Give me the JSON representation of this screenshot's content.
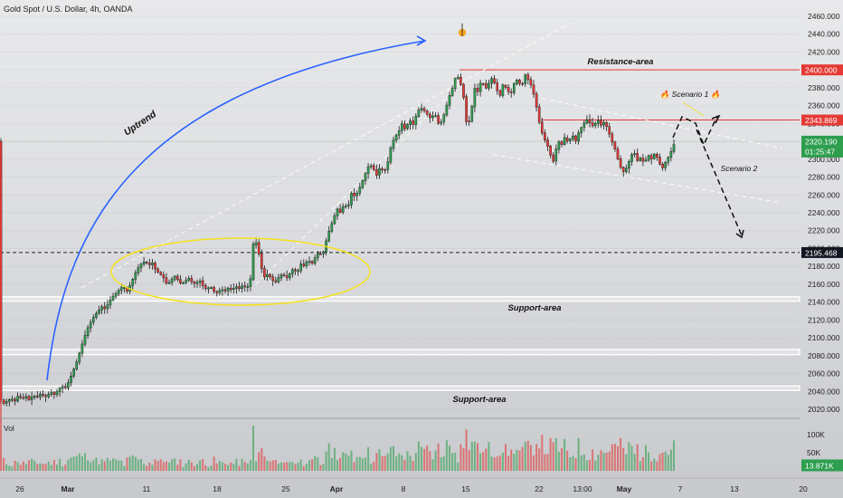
{
  "header": {
    "title": "Gold Spot / U.S. Dollar, 4h, OANDA"
  },
  "chart_data": {
    "type": "candlestick",
    "symbol": "Gold Spot / U.S. Dollar",
    "interval": "4h",
    "source": "OANDA",
    "ylim": [
      2010,
      2470
    ],
    "y_ticks": [
      2020,
      2040,
      2060,
      2080,
      2100,
      2120,
      2140,
      2160,
      2180,
      2200,
      2220,
      2240,
      2260,
      2280,
      2300,
      2320,
      2340,
      2360,
      2380,
      2400,
      2420,
      2440,
      2460
    ],
    "x_ticks": [
      "26",
      "Mar",
      "11",
      "18",
      "25",
      "Apr",
      "8",
      "15",
      "22",
      "13:00",
      "May",
      "7",
      "13",
      "20"
    ],
    "price_labels": [
      {
        "value": 2400.0,
        "text": "2400.000",
        "color": "#e53935"
      },
      {
        "value": 2343.869,
        "text": "2343.869",
        "color": "#e53935"
      },
      {
        "value": 2320.19,
        "text": "2320.190",
        "sub": "01:25:47",
        "color": "#2e9e4f"
      },
      {
        "value": 2195.468,
        "text": "2195.468",
        "color": "#131722"
      }
    ],
    "horizontal_lines": [
      {
        "name": "resistance-top",
        "value": 2400,
        "color": "#e53935"
      },
      {
        "name": "resistance-bottom",
        "value": 2343.869,
        "color": "#e53935"
      },
      {
        "name": "dashed-level",
        "value": 2195.468,
        "color": "#222222"
      }
    ],
    "support_bands": [
      {
        "top": 2146,
        "bottom": 2141
      },
      {
        "top": 2087,
        "bottom": 2081
      },
      {
        "top": 2046,
        "bottom": 2041
      }
    ],
    "path": [
      [
        0,
        2027
      ],
      [
        3,
        2031
      ],
      [
        6,
        2026
      ],
      [
        10,
        2030
      ],
      [
        14,
        2032
      ],
      [
        18,
        2029
      ],
      [
        22,
        2036
      ],
      [
        26,
        2031
      ],
      [
        30,
        2035
      ],
      [
        34,
        2030
      ],
      [
        38,
        2036
      ],
      [
        42,
        2033
      ],
      [
        46,
        2037
      ],
      [
        52,
        2034
      ],
      [
        58,
        2039
      ],
      [
        62,
        2036
      ],
      [
        66,
        2042
      ],
      [
        70,
        2046
      ],
      [
        74,
        2044
      ],
      [
        78,
        2052
      ],
      [
        82,
        2062
      ],
      [
        86,
        2072
      ],
      [
        90,
        2085
      ],
      [
        94,
        2098
      ],
      [
        98,
        2110
      ],
      [
        102,
        2118
      ],
      [
        106,
        2125
      ],
      [
        110,
        2130
      ],
      [
        114,
        2135
      ],
      [
        118,
        2132
      ],
      [
        122,
        2140
      ],
      [
        126,
        2146
      ],
      [
        130,
        2150
      ],
      [
        134,
        2155
      ],
      [
        138,
        2158
      ],
      [
        142,
        2152
      ],
      [
        146,
        2160
      ],
      [
        150,
        2170
      ],
      [
        154,
        2178
      ],
      [
        158,
        2183
      ],
      [
        162,
        2186
      ],
      [
        166,
        2181
      ],
      [
        170,
        2184
      ],
      [
        174,
        2175
      ],
      [
        178,
        2172
      ],
      [
        182,
        2168
      ],
      [
        186,
        2160
      ],
      [
        190,
        2163
      ],
      [
        194,
        2170
      ],
      [
        198,
        2165
      ],
      [
        202,
        2160
      ],
      [
        206,
        2163
      ],
      [
        210,
        2167
      ],
      [
        214,
        2162
      ],
      [
        218,
        2160
      ],
      [
        222,
        2165
      ],
      [
        226,
        2158
      ],
      [
        230,
        2154
      ],
      [
        234,
        2158
      ],
      [
        238,
        2152
      ],
      [
        242,
        2150
      ],
      [
        246,
        2155
      ],
      [
        250,
        2152
      ],
      [
        254,
        2156
      ],
      [
        258,
        2153
      ],
      [
        262,
        2158
      ],
      [
        266,
        2155
      ],
      [
        270,
        2159
      ],
      [
        274,
        2156
      ],
      [
        278,
        2160
      ],
      [
        282,
        2210
      ],
      [
        286,
        2205
      ],
      [
        290,
        2180
      ],
      [
        294,
        2168
      ],
      [
        298,
        2172
      ],
      [
        302,
        2165
      ],
      [
        306,
        2162
      ],
      [
        310,
        2168
      ],
      [
        314,
        2172
      ],
      [
        318,
        2166
      ],
      [
        322,
        2172
      ],
      [
        326,
        2178
      ],
      [
        330,
        2172
      ],
      [
        334,
        2183
      ],
      [
        338,
        2180
      ],
      [
        342,
        2188
      ],
      [
        346,
        2182
      ],
      [
        350,
        2190
      ],
      [
        354,
        2196
      ],
      [
        358,
        2192
      ],
      [
        362,
        2208
      ],
      [
        366,
        2222
      ],
      [
        370,
        2232
      ],
      [
        374,
        2245
      ],
      [
        378,
        2240
      ],
      [
        382,
        2250
      ],
      [
        386,
        2245
      ],
      [
        390,
        2262
      ],
      [
        394,
        2258
      ],
      [
        398,
        2265
      ],
      [
        402,
        2275
      ],
      [
        406,
        2285
      ],
      [
        410,
        2295
      ],
      [
        414,
        2290
      ],
      [
        418,
        2282
      ],
      [
        422,
        2292
      ],
      [
        426,
        2285
      ],
      [
        430,
        2295
      ],
      [
        434,
        2315
      ],
      [
        438,
        2325
      ],
      [
        442,
        2330
      ],
      [
        446,
        2340
      ],
      [
        450,
        2332
      ],
      [
        454,
        2345
      ],
      [
        458,
        2338
      ],
      [
        462,
        2350
      ],
      [
        466,
        2358
      ],
      [
        470,
        2355
      ],
      [
        474,
        2350
      ],
      [
        478,
        2345
      ],
      [
        482,
        2352
      ],
      [
        486,
        2340
      ],
      [
        490,
        2342
      ],
      [
        494,
        2355
      ],
      [
        498,
        2370
      ],
      [
        502,
        2380
      ],
      [
        506,
        2395
      ],
      [
        510,
        2388
      ],
      [
        514,
        2370
      ],
      [
        518,
        2335
      ],
      [
        522,
        2348
      ],
      [
        526,
        2380
      ],
      [
        530,
        2375
      ],
      [
        534,
        2390
      ],
      [
        538,
        2378
      ],
      [
        542,
        2385
      ],
      [
        546,
        2392
      ],
      [
        550,
        2380
      ],
      [
        554,
        2370
      ],
      [
        558,
        2385
      ],
      [
        562,
        2378
      ],
      [
        566,
        2372
      ],
      [
        570,
        2385
      ],
      [
        574,
        2390
      ],
      [
        578,
        2380
      ],
      [
        582,
        2395
      ],
      [
        586,
        2388
      ],
      [
        590,
        2380
      ],
      [
        594,
        2362
      ],
      [
        598,
        2340
      ],
      [
        602,
        2325
      ],
      [
        606,
        2318
      ],
      [
        610,
        2305
      ],
      [
        614,
        2296
      ],
      [
        618,
        2322
      ],
      [
        622,
        2315
      ],
      [
        626,
        2325
      ],
      [
        630,
        2318
      ],
      [
        634,
        2328
      ],
      [
        638,
        2320
      ],
      [
        642,
        2332
      ],
      [
        646,
        2338
      ],
      [
        650,
        2345
      ],
      [
        654,
        2340
      ],
      [
        658,
        2336
      ],
      [
        662,
        2345
      ],
      [
        666,
        2338
      ],
      [
        670,
        2342
      ],
      [
        674,
        2332
      ],
      [
        678,
        2320
      ],
      [
        682,
        2310
      ],
      [
        686,
        2295
      ],
      [
        690,
        2285
      ],
      [
        694,
        2290
      ],
      [
        698,
        2300
      ],
      [
        702,
        2310
      ],
      [
        706,
        2298
      ],
      [
        710,
        2302
      ],
      [
        714,
        2295
      ],
      [
        718,
        2305
      ],
      [
        722,
        2300
      ],
      [
        726,
        2308
      ],
      [
        730,
        2296
      ],
      [
        734,
        2290
      ],
      [
        738,
        2298
      ],
      [
        742,
        2305
      ],
      [
        746,
        2315
      ],
      [
        748,
        2320
      ]
    ],
    "volume_axis": {
      "ticks": [
        {
          "value": 100000,
          "label": "100K"
        },
        {
          "value": 50000,
          "label": "50K"
        }
      ],
      "max": 130000
    },
    "volume_label": "Vol",
    "volume_last": {
      "value": 13871,
      "label": "13.871K"
    },
    "annotations": [
      {
        "text": "Uptrend"
      },
      {
        "text": "Resistance-area"
      },
      {
        "text": "Support-area"
      },
      {
        "text": "Support-area"
      },
      {
        "text": "Scenario 1",
        "emoji": "🔥"
      },
      {
        "text": "Scenario 2"
      }
    ]
  },
  "colors": {
    "up": "#2e9e4f",
    "down": "#e53935",
    "wick": "#1a1a1a",
    "trendline": "#2962ff",
    "ellipse": "#f5e21b",
    "star": "#f5a623"
  }
}
